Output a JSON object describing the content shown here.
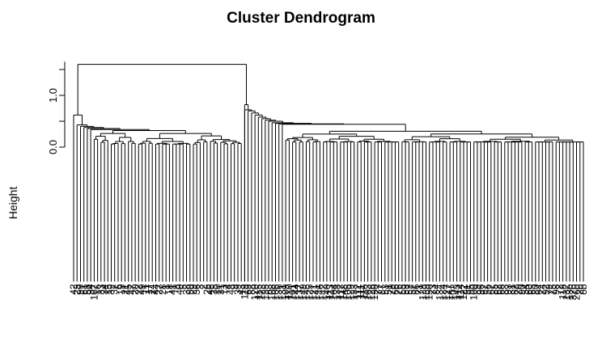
{
  "chart_data": {
    "type": "dendrogram",
    "title": "Cluster Dendrogram",
    "ylabel": "Height",
    "xlabel": "",
    "y_ticks": [
      0.0,
      1.0
    ],
    "y_tick_labels": [
      "0.0",
      "1.0"
    ],
    "ylim": [
      0.0,
      1.65
    ],
    "leaf_baseline": -2.6,
    "leaf_count": 150,
    "leaf_labels": [
      "42",
      "23",
      "99",
      "61",
      "58",
      "94",
      "107",
      "16",
      "33",
      "34",
      "15",
      "32",
      "37",
      "6",
      "19",
      "21",
      "45",
      "47",
      "20",
      "22",
      "49",
      "11",
      "17",
      "24",
      "44",
      "27",
      "28",
      "1",
      "18",
      "41",
      "8",
      "40",
      "5",
      "38",
      "50",
      "29",
      "36",
      "3",
      "2",
      "26",
      "46",
      "35",
      "10",
      "31",
      "13",
      "4",
      "48",
      "9",
      "39",
      "43",
      "119",
      "69",
      "88",
      "120",
      "115",
      "123",
      "135",
      "63",
      "108",
      "106",
      "136",
      "131",
      "109",
      "110",
      "101",
      "144",
      "137",
      "149",
      "145",
      "125",
      "121",
      "141",
      "146",
      "142",
      "140",
      "113",
      "104",
      "138",
      "117",
      "148",
      "105",
      "129",
      "133",
      "112",
      "111",
      "116",
      "103",
      "126",
      "130",
      "77",
      "87",
      "53",
      "51",
      "78",
      "66",
      "76",
      "55",
      "59",
      "52",
      "57",
      "86",
      "71",
      "128",
      "139",
      "150",
      "73",
      "84",
      "134",
      "124",
      "127",
      "147",
      "102",
      "143",
      "114",
      "122",
      "91",
      "95",
      "100",
      "89",
      "96",
      "97",
      "56",
      "67",
      "85",
      "62",
      "68",
      "83",
      "93",
      "81",
      "82",
      "70",
      "90",
      "54",
      "60",
      "65",
      "80",
      "64",
      "74",
      "92",
      "79",
      "75",
      "98",
      "72",
      "118",
      "132",
      "13b",
      "37b",
      "26b",
      "2b",
      "8b"
    ],
    "merge_heights": {
      "root": 1.6,
      "left_cluster": 0.62,
      "left_main": 0.43,
      "left_core": 0.33,
      "right_cluster": 0.82,
      "right_main": 0.72,
      "right_core": 0.42
    }
  }
}
